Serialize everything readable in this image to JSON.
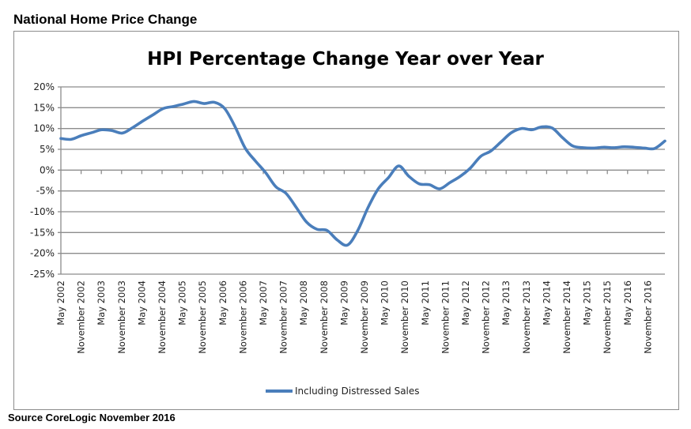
{
  "page": {
    "heading": "National Home Price Change",
    "source": "Source CoreLogic  November 2016"
  },
  "chart_data": {
    "type": "line",
    "title": "HPI Percentage Change Year over Year",
    "xlabel": "",
    "ylabel": "",
    "ylim": [
      -25,
      20
    ],
    "y_ticks": [
      20,
      15,
      10,
      5,
      0,
      -5,
      -10,
      -15,
      -20,
      -25
    ],
    "y_tick_labels": [
      "20%",
      "15%",
      "10%",
      "5%",
      "0%",
      "-5%",
      "-10%",
      "-15%",
      "-20%",
      "-25%"
    ],
    "x_tick_labels": [
      "May 2002",
      "November 2002",
      "May 2003",
      "November 2003",
      "May 2004",
      "November 2004",
      "May 2005",
      "November 2005",
      "May 2006",
      "November 2006",
      "May 2007",
      "November 2007",
      "May 2008",
      "November 2008",
      "May 2009",
      "November 2009",
      "May 2010",
      "November 2010",
      "May 2011",
      "November 2011",
      "May 2012",
      "November 2012",
      "May 2013",
      "November 2013",
      "May 2014",
      "November 2014",
      "May 2015",
      "November 2015",
      "May 2016",
      "November 2016"
    ],
    "grid": true,
    "legend_position": "bottom",
    "series": [
      {
        "name": "Including Distressed Sales",
        "color": "#4a7ebb",
        "values": [
          7.6,
          7.4,
          8.3,
          9.0,
          9.7,
          9.5,
          8.9,
          10.2,
          11.8,
          13.3,
          14.8,
          15.3,
          15.9,
          16.5,
          16.0,
          16.3,
          14.8,
          10.5,
          5.3,
          2.2,
          -0.6,
          -4.0,
          -5.6,
          -9.0,
          -12.5,
          -14.2,
          -14.5,
          -16.8,
          -18.0,
          -14.5,
          -9.0,
          -4.5,
          -1.8,
          1.0,
          -1.5,
          -3.3,
          -3.5,
          -4.5,
          -3.0,
          -1.5,
          0.5,
          3.3,
          4.6,
          6.8,
          9.0,
          10.0,
          9.7,
          10.4,
          10.1,
          7.8,
          5.8,
          5.4,
          5.3,
          5.5,
          5.4,
          5.6,
          5.5,
          5.3,
          5.2,
          7.0
        ]
      }
    ]
  }
}
